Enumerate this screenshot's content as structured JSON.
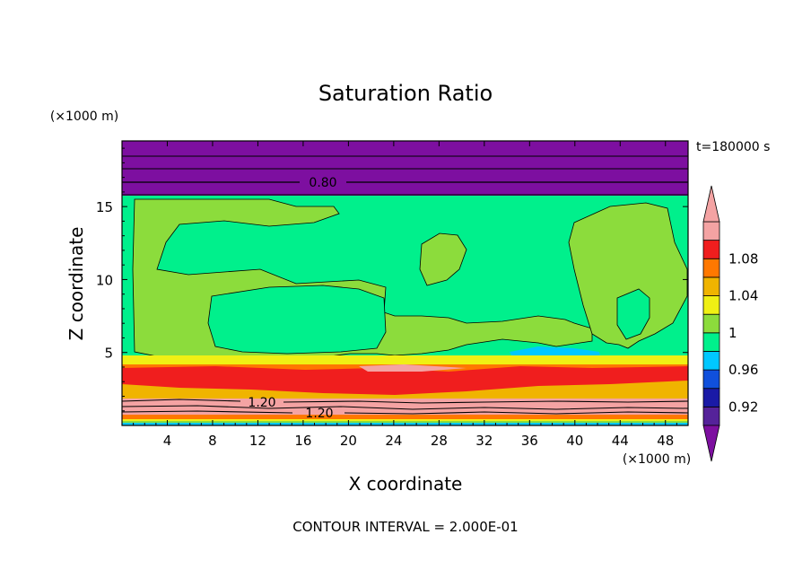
{
  "chart_data": {
    "type": "heatmap",
    "title": "Saturation Ratio",
    "xlabel": "X coordinate",
    "ylabel": "Z coordinate",
    "x_unit": "(×1000 m)",
    "y_unit": "(×1000 m)",
    "time_label": "t=180000 s",
    "footer": "CONTOUR INTERVAL = 2.000E-01",
    "xlim": [
      0,
      50
    ],
    "ylim": [
      0,
      19.5
    ],
    "x_ticks": [
      "4",
      "8",
      "12",
      "16",
      "20",
      "24",
      "28",
      "32",
      "36",
      "40",
      "44",
      "48"
    ],
    "y_ticks": [
      "5",
      "10",
      "15"
    ],
    "contour_labels": [
      "0.80",
      "1.20",
      "1.20"
    ],
    "colorbar": {
      "labels": [
        "1.08",
        "1.04",
        "1",
        "0.96",
        "0.92"
      ],
      "levels": [
        0.9,
        0.92,
        0.94,
        0.96,
        0.98,
        1.0,
        1.02,
        1.04,
        1.06,
        1.08,
        1.1
      ],
      "colors": [
        "#55229a",
        "#1a1aa6",
        "#1050dc",
        "#00c8ff",
        "#00f08c",
        "#8cdc3c",
        "#f0f014",
        "#f0b400",
        "#ff7800",
        "#f01e1e",
        "#f4a3a3"
      ],
      "extend": "both"
    },
    "bands": [
      {
        "z": [
          16.1,
          19.5
        ],
        "value": "< 0.90",
        "color": "#7d0fa0"
      },
      {
        "z": [
          4.5,
          16.1
        ],
        "value": "0.98–1.00 with 1.00–1.02 patches",
        "color": "#00f08c"
      },
      {
        "z": [
          3.0,
          4.5
        ],
        "value": "1.04–1.10",
        "color": "#ff7800"
      },
      {
        "z": [
          1.5,
          3.0
        ],
        "value": "1.02–1.10",
        "color": "#f0b400"
      },
      {
        "z": [
          0.4,
          1.5
        ],
        "value": "> 1.10",
        "color": "#f4a3a3"
      }
    ]
  }
}
